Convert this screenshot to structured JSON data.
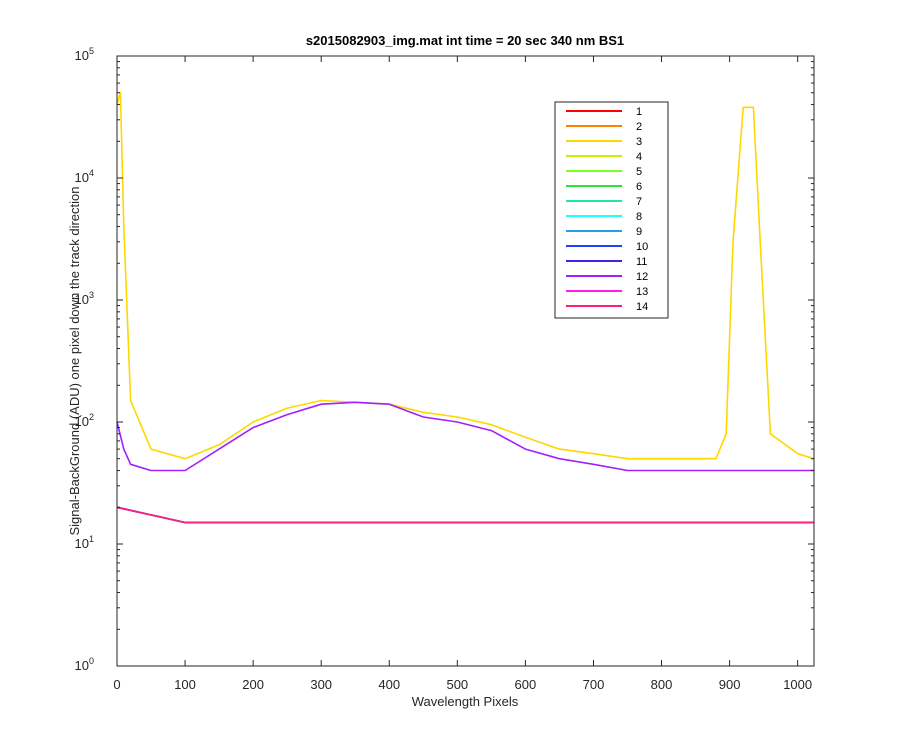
{
  "chart_data": {
    "type": "line",
    "title": "s2015082903_img.mat int time = 20 sec  340 nm BS1",
    "xlabel": "Wavelength Pixels",
    "ylabel": "Signal-BackGround (ADU) one pixel down the track direction",
    "xlim": [
      0,
      1024
    ],
    "ylim": [
      1,
      100000
    ],
    "yscale": "log",
    "grid": false,
    "legend_position": "top-right",
    "x_ticks": [
      "0",
      "100",
      "200",
      "300",
      "400",
      "500",
      "600",
      "700",
      "800",
      "900",
      "1000"
    ],
    "y_ticks": [
      {
        "base": "10",
        "exp": "0"
      },
      {
        "base": "10",
        "exp": "1"
      },
      {
        "base": "10",
        "exp": "2"
      },
      {
        "base": "10",
        "exp": "3"
      },
      {
        "base": "10",
        "exp": "4"
      },
      {
        "base": "10",
        "exp": "5"
      }
    ],
    "series": [
      {
        "name": "1",
        "color": "#ff0000",
        "x": [
          0,
          100,
          200,
          300,
          400,
          500,
          600,
          700,
          800,
          900,
          1024
        ],
        "y": [
          20,
          15,
          15,
          15,
          15,
          15,
          15,
          15,
          15,
          15,
          15
        ]
      },
      {
        "name": "2",
        "color": "#ff7f00",
        "x": [
          0,
          100,
          200,
          300,
          400,
          500,
          600,
          700,
          800,
          900,
          1024
        ],
        "y": [
          20,
          15,
          15,
          15,
          15,
          15,
          15,
          15,
          15,
          15,
          15
        ]
      },
      {
        "name": "3",
        "color": "#ffd700",
        "x": [
          0,
          5,
          10,
          20,
          50,
          100,
          150,
          200,
          250,
          300,
          350,
          400,
          450,
          500,
          550,
          600,
          650,
          700,
          750,
          800,
          850,
          880,
          895,
          905,
          920,
          935,
          945,
          960,
          1000,
          1024
        ],
        "y": [
          40000,
          50000,
          4000,
          150,
          60,
          50,
          65,
          100,
          130,
          150,
          145,
          140,
          120,
          110,
          95,
          75,
          60,
          55,
          50,
          50,
          50,
          50,
          80,
          3000,
          38000,
          38000,
          3000,
          80,
          55,
          50
        ]
      },
      {
        "name": "4",
        "color": "#c8f000",
        "x": [
          0,
          100,
          200,
          300,
          400,
          500,
          600,
          700,
          800,
          900,
          1024
        ],
        "y": [
          20,
          15,
          15,
          15,
          15,
          15,
          15,
          15,
          15,
          15,
          15
        ]
      },
      {
        "name": "5",
        "color": "#7cff1f",
        "x": [
          0,
          100,
          200,
          300,
          400,
          500,
          600,
          700,
          800,
          900,
          1024
        ],
        "y": [
          20,
          15,
          15,
          15,
          15,
          15,
          15,
          15,
          15,
          15,
          15
        ]
      },
      {
        "name": "6",
        "color": "#27e83a",
        "x": [
          0,
          100,
          200,
          300,
          400,
          500,
          600,
          700,
          800,
          900,
          1024
        ],
        "y": [
          20,
          15,
          15,
          15,
          15,
          15,
          15,
          15,
          15,
          15,
          15
        ]
      },
      {
        "name": "7",
        "color": "#1fe89a",
        "x": [
          0,
          100,
          200,
          300,
          400,
          500,
          600,
          700,
          800,
          900,
          1024
        ],
        "y": [
          20,
          15,
          15,
          15,
          15,
          15,
          15,
          15,
          15,
          15,
          15
        ]
      },
      {
        "name": "8",
        "color": "#1fffff",
        "x": [
          0,
          100,
          200,
          300,
          400,
          500,
          600,
          700,
          800,
          900,
          1024
        ],
        "y": [
          20,
          15,
          15,
          15,
          15,
          15,
          15,
          15,
          15,
          15,
          15
        ]
      },
      {
        "name": "9",
        "color": "#1fa0e8",
        "x": [
          0,
          100,
          200,
          300,
          400,
          500,
          600,
          700,
          800,
          900,
          1024
        ],
        "y": [
          20,
          15,
          15,
          15,
          15,
          15,
          15,
          15,
          15,
          15,
          15
        ]
      },
      {
        "name": "10",
        "color": "#1f40ff",
        "x": [
          0,
          100,
          200,
          300,
          400,
          500,
          600,
          700,
          800,
          900,
          1024
        ],
        "y": [
          20,
          15,
          15,
          15,
          15,
          15,
          15,
          15,
          15,
          15,
          15
        ]
      },
      {
        "name": "11",
        "color": "#4a1fe8",
        "x": [
          0,
          100,
          200,
          300,
          400,
          500,
          600,
          700,
          800,
          900,
          1024
        ],
        "y": [
          20,
          15,
          15,
          15,
          15,
          15,
          15,
          15,
          15,
          15,
          15
        ]
      },
      {
        "name": "12",
        "color": "#a31fff",
        "x": [
          0,
          10,
          20,
          50,
          100,
          150,
          200,
          250,
          300,
          350,
          400,
          450,
          500,
          550,
          600,
          650,
          700,
          750,
          800,
          850,
          900,
          950,
          1000,
          1024
        ],
        "y": [
          100,
          60,
          45,
          40,
          40,
          60,
          90,
          115,
          140,
          145,
          140,
          110,
          100,
          85,
          60,
          50,
          45,
          40,
          40,
          40,
          40,
          40,
          40,
          40
        ]
      },
      {
        "name": "13",
        "color": "#ff1fe8",
        "x": [
          0,
          100,
          200,
          300,
          400,
          500,
          600,
          700,
          800,
          900,
          1024
        ],
        "y": [
          20,
          15,
          15,
          15,
          15,
          15,
          15,
          15,
          15,
          15,
          15
        ]
      },
      {
        "name": "14",
        "color": "#ff1f7a",
        "x": [
          0,
          100,
          200,
          300,
          400,
          500,
          600,
          700,
          800,
          900,
          1024
        ],
        "y": [
          20,
          15,
          15,
          15,
          15,
          15,
          15,
          15,
          15,
          15,
          15
        ]
      }
    ]
  }
}
